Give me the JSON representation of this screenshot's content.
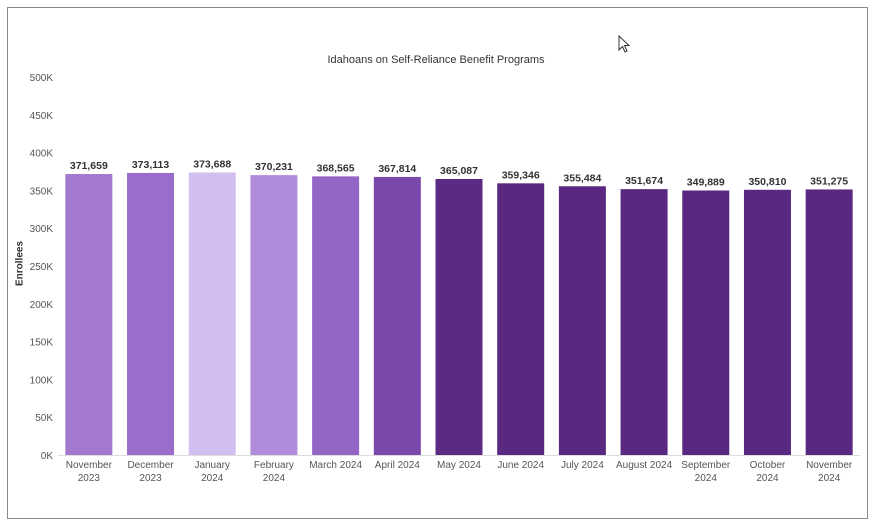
{
  "chart_data": {
    "type": "bar",
    "title": "Idahoans on Self-Reliance Benefit Programs",
    "ylabel": "Enrollees",
    "xlabel": "",
    "ylim": [
      0,
      500000
    ],
    "yticks": [
      "0K",
      "50K",
      "100K",
      "150K",
      "200K",
      "250K",
      "300K",
      "350K",
      "400K",
      "450K",
      "500K"
    ],
    "grid": false,
    "categories": [
      [
        "November",
        "2023"
      ],
      [
        "December",
        "2023"
      ],
      [
        "January",
        "2024"
      ],
      [
        "February",
        "2024"
      ],
      [
        "March 2024"
      ],
      [
        "April 2024"
      ],
      [
        "May 2024"
      ],
      [
        "June 2024"
      ],
      [
        "July 2024"
      ],
      [
        "August 2024"
      ],
      [
        "September",
        "2024"
      ],
      [
        "October",
        "2024"
      ],
      [
        "November",
        "2024"
      ]
    ],
    "values": [
      371659,
      373113,
      373688,
      370231,
      368565,
      367814,
      365087,
      359346,
      355484,
      351674,
      349889,
      350810,
      351275
    ],
    "value_labels": [
      "371,659",
      "373,113",
      "373,688",
      "370,231",
      "368,565",
      "367,814",
      "365,087",
      "359,346",
      "355,484",
      "351,674",
      "349,889",
      "350,810",
      "351,275"
    ],
    "colors": [
      "#a279cf",
      "#9a6ccb",
      "#d2bff0",
      "#b08ddb",
      "#9366c6",
      "#7a48ab",
      "#5c2a83",
      "#5a2880",
      "#5a2880",
      "#5a2880",
      "#5a2880",
      "#5a2880",
      "#5a2880"
    ]
  }
}
